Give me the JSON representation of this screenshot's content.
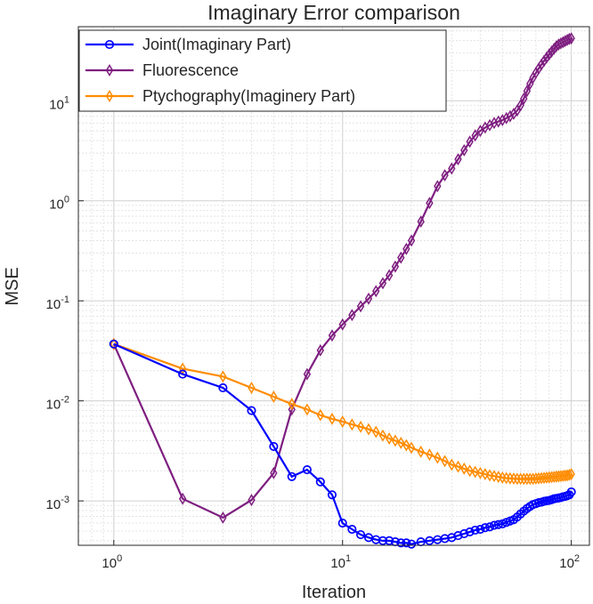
{
  "chart_data": {
    "type": "line",
    "title": "Imaginary Error comparison",
    "xlabel": "Iteration",
    "ylabel": "MSE",
    "xscale": "log",
    "yscale": "log",
    "xlim": [
      0.7,
      120
    ],
    "ylim": [
      0.00036,
      55
    ],
    "grid": true,
    "legend_position": "top-left",
    "x_ticks": [
      {
        "value": 1,
        "base": "10",
        "exp": "0"
      },
      {
        "value": 10,
        "base": "10",
        "exp": "1"
      },
      {
        "value": 100,
        "base": "10",
        "exp": "2"
      }
    ],
    "y_ticks": [
      {
        "value": 0.001,
        "base": "10",
        "exp": "-3"
      },
      {
        "value": 0.01,
        "base": "10",
        "exp": "-2"
      },
      {
        "value": 0.1,
        "base": "10",
        "exp": "-1"
      },
      {
        "value": 1,
        "base": "10",
        "exp": "0"
      },
      {
        "value": 10,
        "base": "10",
        "exp": "1"
      }
    ],
    "series": [
      {
        "name": "Joint(Imaginary Part)",
        "color": "#0000ff",
        "marker": "circle",
        "x": [
          1,
          2,
          3,
          4,
          5,
          6,
          7,
          8,
          9,
          10,
          11,
          12,
          13,
          14,
          15,
          16,
          17,
          18,
          19,
          20,
          22,
          24,
          26,
          28,
          30,
          32,
          34,
          36,
          38,
          40,
          42,
          44,
          46,
          48,
          50,
          52,
          54,
          56,
          58,
          60,
          62,
          64,
          66,
          68,
          70,
          72,
          74,
          76,
          78,
          80,
          82,
          84,
          86,
          88,
          90,
          92,
          94,
          96,
          98,
          100
        ],
        "y": [
          0.037,
          0.0185,
          0.0135,
          0.008,
          0.0035,
          0.00175,
          0.00205,
          0.00155,
          0.00115,
          0.0006,
          0.00052,
          0.00046,
          0.00043,
          0.00041,
          0.0004,
          0.0004,
          0.00039,
          0.00038,
          0.00038,
          0.00037,
          0.00039,
          0.0004,
          0.00041,
          0.00042,
          0.00043,
          0.00045,
          0.00047,
          0.00049,
          0.00051,
          0.00052,
          0.00054,
          0.00055,
          0.00057,
          0.00058,
          0.00059,
          0.00061,
          0.00063,
          0.00065,
          0.00069,
          0.00074,
          0.00079,
          0.00084,
          0.00088,
          0.00092,
          0.00094,
          0.00096,
          0.00097,
          0.00099,
          0.001,
          0.00101,
          0.00103,
          0.00105,
          0.00106,
          0.00107,
          0.00108,
          0.0011,
          0.00111,
          0.00113,
          0.00115,
          0.00123
        ]
      },
      {
        "name": "Fluorescence",
        "color": "#7e1e80",
        "marker": "diamond",
        "x": [
          1,
          2,
          3,
          4,
          5,
          6,
          7,
          8,
          9,
          10,
          11,
          12,
          13,
          14,
          15,
          16,
          17,
          18,
          19,
          20,
          22,
          24,
          26,
          28,
          30,
          32,
          34,
          36,
          38,
          40,
          42,
          44,
          46,
          48,
          50,
          52,
          54,
          56,
          58,
          60,
          62,
          64,
          66,
          68,
          70,
          72,
          74,
          76,
          78,
          80,
          82,
          84,
          86,
          88,
          90,
          92,
          94,
          96,
          98,
          100
        ],
        "y": [
          0.037,
          0.00105,
          0.00068,
          0.00102,
          0.0019,
          0.0082,
          0.0185,
          0.032,
          0.045,
          0.058,
          0.072,
          0.088,
          0.105,
          0.125,
          0.15,
          0.18,
          0.22,
          0.27,
          0.33,
          0.4,
          0.62,
          0.95,
          1.4,
          1.8,
          2.1,
          2.6,
          3.2,
          3.9,
          4.5,
          5.0,
          5.4,
          5.7,
          6.0,
          6.2,
          6.4,
          6.7,
          7.0,
          7.4,
          8.0,
          9.0,
          10.5,
          12.5,
          14.8,
          17.0,
          19.0,
          21.0,
          23.0,
          25.0,
          27.0,
          29.0,
          31.0,
          33.0,
          35.0,
          36.5,
          37.5,
          38.5,
          39.5,
          40.5,
          41.5,
          42.0
        ]
      },
      {
        "name": "Ptychography(Imaginery Part)",
        "color": "#ff8c00",
        "marker": "diamond",
        "x": [
          1,
          2,
          3,
          4,
          5,
          6,
          7,
          8,
          9,
          10,
          11,
          12,
          13,
          14,
          15,
          16,
          17,
          18,
          19,
          20,
          22,
          24,
          26,
          28,
          30,
          32,
          34,
          36,
          38,
          40,
          42,
          44,
          46,
          48,
          50,
          52,
          54,
          56,
          58,
          60,
          62,
          64,
          66,
          68,
          70,
          72,
          74,
          76,
          78,
          80,
          82,
          84,
          86,
          88,
          90,
          92,
          94,
          96,
          98,
          100
        ],
        "y": [
          0.037,
          0.021,
          0.0175,
          0.0135,
          0.011,
          0.0093,
          0.0082,
          0.0072,
          0.0066,
          0.0062,
          0.0058,
          0.0055,
          0.0052,
          0.0049,
          0.0045,
          0.0042,
          0.004,
          0.0038,
          0.0036,
          0.0034,
          0.0031,
          0.0029,
          0.0027,
          0.0025,
          0.0023,
          0.0022,
          0.0021,
          0.002,
          0.00195,
          0.0019,
          0.00185,
          0.0018,
          0.00177,
          0.00174,
          0.00171,
          0.00169,
          0.00168,
          0.00167,
          0.00166,
          0.00166,
          0.00166,
          0.00166,
          0.00166,
          0.00166,
          0.00167,
          0.00168,
          0.00169,
          0.0017,
          0.00171,
          0.00172,
          0.00173,
          0.00174,
          0.00175,
          0.00176,
          0.00177,
          0.00178,
          0.00179,
          0.0018,
          0.00182,
          0.00185
        ]
      }
    ]
  }
}
